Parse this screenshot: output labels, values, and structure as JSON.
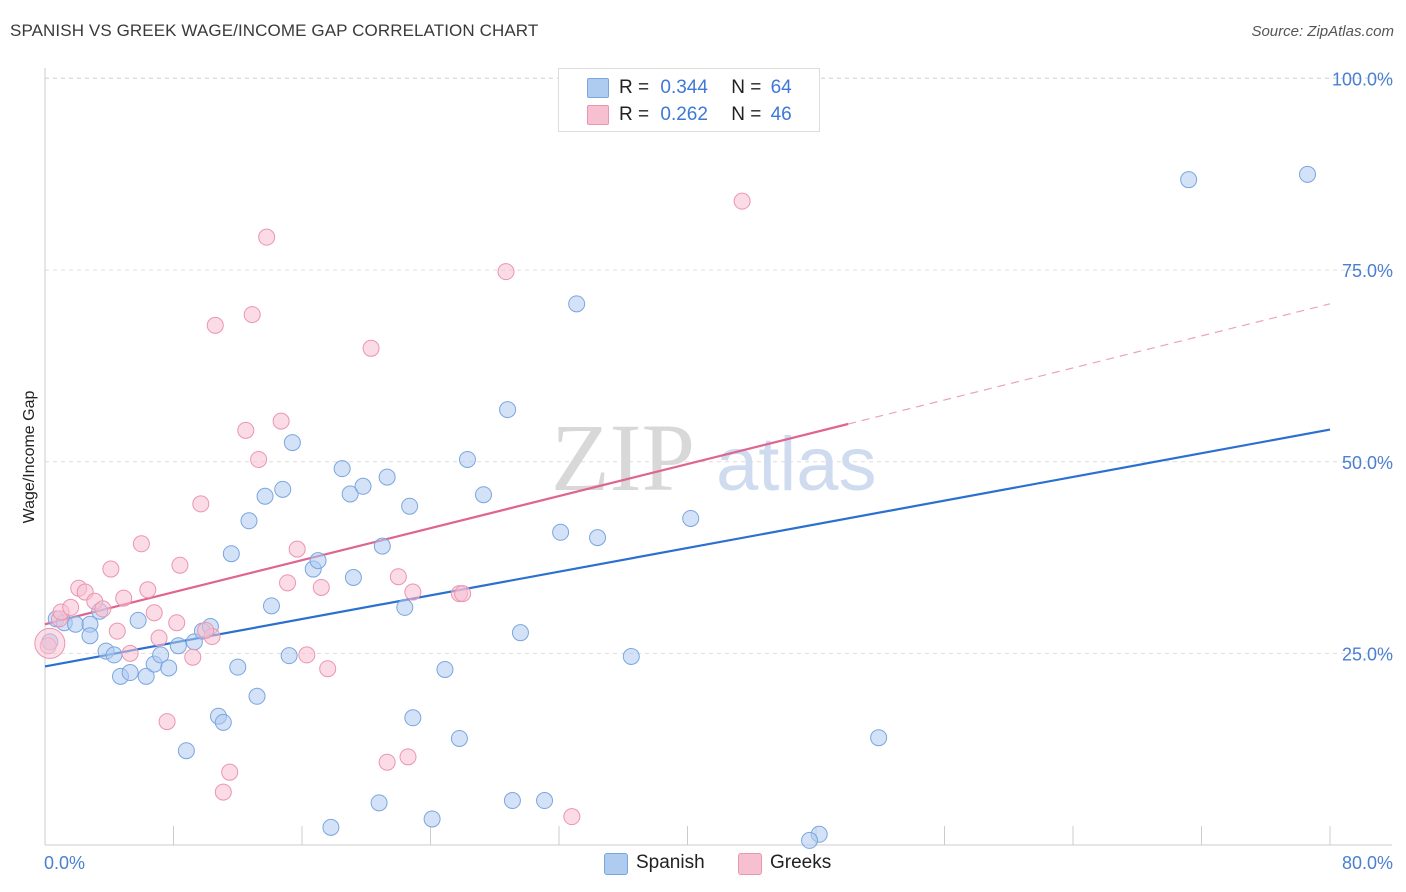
{
  "header": {
    "title": "SPANISH VS GREEK WAGE/INCOME GAP CORRELATION CHART",
    "source": "Source: ZipAtlas.com"
  },
  "legend": {
    "rows": [
      {
        "r_label": "R =",
        "r_value": "0.344",
        "n_label": "N =",
        "n_value": "64"
      },
      {
        "r_label": "R =",
        "r_value": "0.262",
        "n_label": "N =",
        "n_value": "46"
      }
    ],
    "bottom": [
      {
        "label": "Spanish"
      },
      {
        "label": "Greeks"
      }
    ]
  },
  "watermark": {
    "zip": "ZIP",
    "atlas": "atlas"
  },
  "colors": {
    "spanish_fill": "#aecbf0",
    "spanish_stroke": "#7aa6e0",
    "spanish_line": "#2b6fd1",
    "greeks_fill": "#f7c0d1",
    "greeks_stroke": "#eb95b0",
    "greeks_line": "#e0648f",
    "tick_text": "#4a7fd1",
    "grid": "#dddddd"
  },
  "chart_data": {
    "type": "scatter",
    "title": "SPANISH VS GREEK WAGE/INCOME GAP CORRELATION CHART",
    "xlabel": "",
    "ylabel": "Wage/Income Gap",
    "xlim": [
      0,
      80
    ],
    "ylim": [
      0,
      105
    ],
    "x_tick_labels": [
      "0.0%",
      "80.0%"
    ],
    "y_ticks": [
      25,
      50,
      75,
      100
    ],
    "y_tick_labels": [
      "25.0%",
      "50.0%",
      "75.0%",
      "100.0%"
    ],
    "grid": true,
    "legend_position": "top-center",
    "series": [
      {
        "name": "Spanish",
        "r": 0.344,
        "n": 64,
        "trend": {
          "x": [
            0,
            80
          ],
          "y": [
            23.3,
            54.2
          ],
          "dashed_from": null
        },
        "points": [
          [
            0.3,
            26.5
          ],
          [
            0.7,
            29.5
          ],
          [
            1.2,
            29.0
          ],
          [
            1.9,
            28.8
          ],
          [
            2.8,
            28.8
          ],
          [
            2.8,
            27.3
          ],
          [
            3.4,
            30.5
          ],
          [
            3.8,
            25.3
          ],
          [
            4.3,
            24.8
          ],
          [
            4.7,
            22.0
          ],
          [
            5.3,
            22.5
          ],
          [
            5.8,
            29.3
          ],
          [
            6.3,
            22.0
          ],
          [
            6.8,
            23.6
          ],
          [
            7.2,
            24.8
          ],
          [
            7.7,
            23.1
          ],
          [
            8.3,
            26.0
          ],
          [
            8.8,
            12.3
          ],
          [
            9.3,
            26.5
          ],
          [
            9.8,
            27.9
          ],
          [
            10.3,
            28.5
          ],
          [
            10.8,
            16.8
          ],
          [
            11.1,
            16.0
          ],
          [
            11.6,
            38.0
          ],
          [
            12.0,
            23.2
          ],
          [
            12.7,
            42.3
          ],
          [
            13.2,
            19.4
          ],
          [
            13.7,
            45.5
          ],
          [
            14.1,
            31.2
          ],
          [
            14.8,
            46.4
          ],
          [
            15.2,
            24.7
          ],
          [
            15.4,
            52.5
          ],
          [
            16.7,
            36.0
          ],
          [
            17.0,
            37.1
          ],
          [
            17.8,
            2.3
          ],
          [
            18.5,
            49.1
          ],
          [
            19.0,
            45.8
          ],
          [
            19.2,
            34.9
          ],
          [
            19.8,
            46.8
          ],
          [
            20.8,
            5.5
          ],
          [
            21.0,
            39.0
          ],
          [
            21.3,
            48.0
          ],
          [
            22.4,
            31.0
          ],
          [
            22.7,
            44.2
          ],
          [
            22.9,
            16.6
          ],
          [
            24.1,
            3.4
          ],
          [
            24.9,
            22.9
          ],
          [
            25.8,
            13.9
          ],
          [
            26.3,
            50.3
          ],
          [
            27.3,
            45.7
          ],
          [
            28.8,
            56.8
          ],
          [
            29.1,
            5.8
          ],
          [
            29.6,
            27.7
          ],
          [
            31.1,
            5.8
          ],
          [
            32.1,
            40.8
          ],
          [
            33.1,
            70.6
          ],
          [
            34.4,
            40.1
          ],
          [
            36.5,
            24.6
          ],
          [
            40.2,
            42.6
          ],
          [
            48.2,
            1.4
          ],
          [
            47.6,
            0.6
          ],
          [
            51.9,
            14.0
          ],
          [
            71.2,
            86.8
          ],
          [
            78.6,
            87.5
          ]
        ]
      },
      {
        "name": "Greeks",
        "r": 0.262,
        "n": 46,
        "trend": {
          "x": [
            0,
            80
          ],
          "y": [
            28.8,
            70.6
          ],
          "dashed_from": 50
        },
        "points": [
          [
            0.2,
            26.0
          ],
          [
            0.9,
            29.5
          ],
          [
            1.0,
            30.4
          ],
          [
            1.6,
            31.0
          ],
          [
            2.1,
            33.5
          ],
          [
            2.5,
            33.0
          ],
          [
            3.1,
            31.8
          ],
          [
            3.6,
            30.8
          ],
          [
            4.1,
            36.0
          ],
          [
            4.5,
            27.9
          ],
          [
            4.9,
            32.2
          ],
          [
            5.3,
            25.0
          ],
          [
            6.0,
            39.3
          ],
          [
            6.4,
            33.3
          ],
          [
            6.8,
            30.3
          ],
          [
            7.1,
            27.0
          ],
          [
            7.6,
            16.1
          ],
          [
            8.2,
            29.0
          ],
          [
            8.4,
            36.5
          ],
          [
            9.2,
            24.5
          ],
          [
            9.7,
            44.5
          ],
          [
            10.4,
            27.2
          ],
          [
            11.1,
            6.9
          ],
          [
            10.6,
            67.8
          ],
          [
            11.5,
            9.5
          ],
          [
            12.5,
            54.1
          ],
          [
            12.9,
            69.2
          ],
          [
            13.3,
            50.3
          ],
          [
            13.8,
            79.3
          ],
          [
            14.7,
            55.3
          ],
          [
            15.1,
            34.2
          ],
          [
            15.7,
            38.6
          ],
          [
            16.3,
            24.8
          ],
          [
            17.2,
            33.6
          ],
          [
            17.6,
            23.0
          ],
          [
            20.3,
            64.8
          ],
          [
            21.3,
            10.8
          ],
          [
            22.0,
            35.0
          ],
          [
            22.6,
            11.5
          ],
          [
            22.9,
            33.0
          ],
          [
            25.8,
            32.8
          ],
          [
            26.0,
            32.8
          ],
          [
            28.7,
            74.8
          ],
          [
            32.8,
            3.7
          ],
          [
            43.4,
            84.0
          ],
          [
            10.0,
            28.0
          ]
        ]
      }
    ]
  }
}
